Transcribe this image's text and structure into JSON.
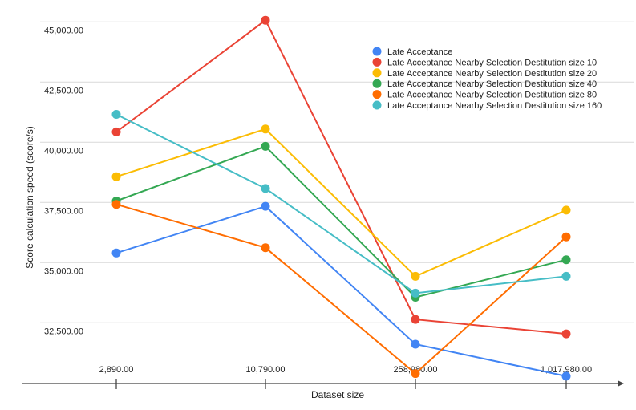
{
  "chart_data": {
    "type": "line",
    "title": "",
    "xlabel": "Dataset size",
    "ylabel": "Score calculation speed (score/s)",
    "categories": [
      "2,890.00",
      "10,790.00",
      "258,980.00",
      "1,017,980.00"
    ],
    "yticks": [
      "32,500.00",
      "35,000.00",
      "37,500.00",
      "40,000.00",
      "42,500.00",
      "45,000.00"
    ],
    "ytick_values": [
      32500,
      35000,
      37500,
      40000,
      42500,
      45000
    ],
    "ylim": [
      30000,
      45500
    ],
    "grid": true,
    "legend_position": "top-right",
    "series": [
      {
        "name": "Late Acceptance",
        "color": "#4285f4",
        "values": [
          35400,
          37340,
          31610,
          30280
        ]
      },
      {
        "name": "Late Acceptance  Nearby Selection Destitution size 10",
        "color": "#ea4335",
        "values": [
          40430,
          45070,
          32640,
          32040
        ]
      },
      {
        "name": "Late Acceptance  Nearby Selection Destitution size 20",
        "color": "#fbbc04",
        "values": [
          38570,
          40550,
          34430,
          37180
        ]
      },
      {
        "name": "Late Acceptance  Nearby Selection Destitution size 40",
        "color": "#34a853",
        "values": [
          37560,
          39830,
          33560,
          35120
        ]
      },
      {
        "name": "Late Acceptance  Nearby Selection Destitution size 80",
        "color": "#ff6d01",
        "values": [
          37420,
          35620,
          30390,
          36070
        ]
      },
      {
        "name": "Late Acceptance  Nearby Selection Destitution size 160",
        "color": "#46bdc6",
        "values": [
          41160,
          38080,
          33730,
          34430
        ]
      }
    ]
  }
}
